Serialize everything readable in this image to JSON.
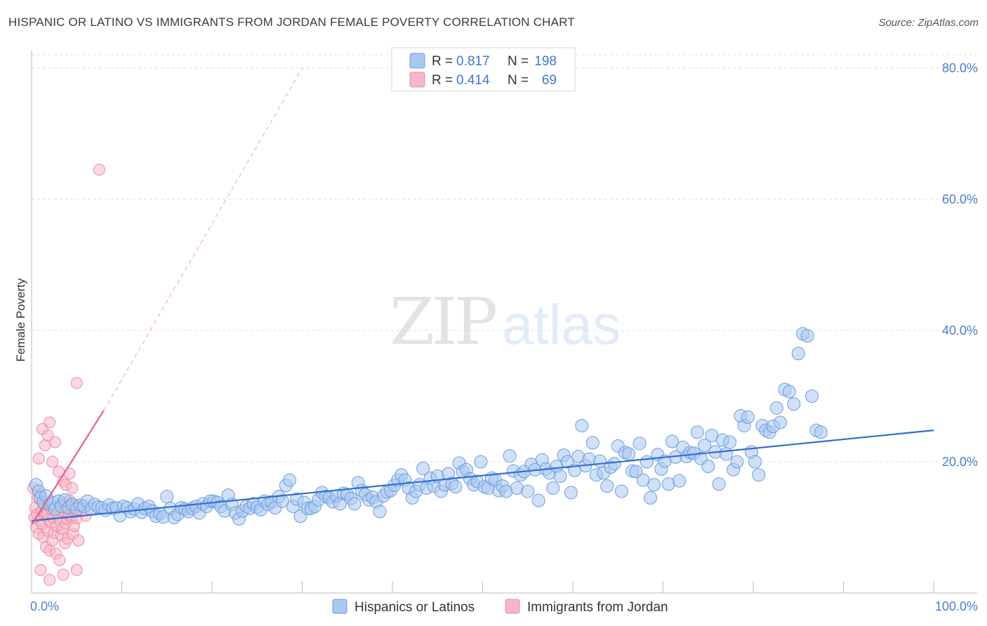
{
  "title": "HISPANIC OR LATINO VS IMMIGRANTS FROM JORDAN FEMALE POVERTY CORRELATION CHART",
  "source": "Source: ZipAtlas.com",
  "colors": {
    "blue_fill": "#a9c8f0",
    "blue_stroke": "#6a9be0",
    "blue_line": "#2f6fd1",
    "pink_fill": "#f6b7c8",
    "pink_stroke": "#ee8aa6",
    "pink_line": "#e8628a",
    "axis_text": "#4a7fd1",
    "grid": "#dddddd"
  },
  "watermark": {
    "zip": "ZIP",
    "atlas": "atlas"
  },
  "legend_top": {
    "rows": [
      {
        "r_label": "R =",
        "r_value": "0.817",
        "n_label": "N =",
        "n_value": "198"
      },
      {
        "r_label": "R =",
        "r_value": "0.414",
        "n_label": "N =",
        "n_value": "69"
      }
    ]
  },
  "legend_bottom": {
    "series1": "Hispanics or Latinos",
    "series2": "Immigrants from Jordan"
  },
  "chart_data": {
    "type": "scatter",
    "title": "HISPANIC OR LATINO VS IMMIGRANTS FROM JORDAN FEMALE POVERTY CORRELATION CHART",
    "xlabel": "",
    "ylabel": "Female Poverty",
    "xlim": [
      0,
      100
    ],
    "ylim": [
      0,
      82
    ],
    "x_tick_labels": [
      "0.0%",
      "100.0%"
    ],
    "y_ticks": [
      20,
      40,
      60,
      80
    ],
    "y_tick_labels": [
      "20.0%",
      "40.0%",
      "60.0%",
      "80.0%"
    ],
    "grid": true,
    "legend_position": "top-center",
    "series": [
      {
        "name": "Hispanics or Latinos",
        "r": 0.817,
        "n": 198,
        "trend": {
          "x0": 0,
          "y0": 11.0,
          "x1": 100,
          "y1": 24.8
        },
        "points": [
          [
            0.5,
            16.5
          ],
          [
            0.8,
            15.5
          ],
          [
            1.0,
            14.5
          ],
          [
            1.3,
            13.8
          ],
          [
            1.6,
            14.8
          ],
          [
            2.0,
            13.5
          ],
          [
            2.3,
            13.8
          ],
          [
            2.6,
            12.8
          ],
          [
            3.0,
            14.0
          ],
          [
            3.3,
            13.2
          ],
          [
            3.7,
            14.2
          ],
          [
            4.1,
            13.0
          ],
          [
            4.5,
            13.5
          ],
          [
            5.0,
            12.8
          ],
          [
            5.4,
            13.4
          ],
          [
            5.8,
            13.2
          ],
          [
            6.2,
            14.0
          ],
          [
            6.6,
            12.8
          ],
          [
            7.0,
            13.5
          ],
          [
            7.4,
            13.1
          ],
          [
            7.8,
            13.0
          ],
          [
            8.2,
            12.6
          ],
          [
            8.6,
            13.4
          ],
          [
            9.0,
            12.9
          ],
          [
            9.4,
            13.0
          ],
          [
            9.8,
            11.8
          ],
          [
            10.2,
            13.2
          ],
          [
            10.6,
            13.0
          ],
          [
            11.0,
            12.4
          ],
          [
            11.4,
            12.8
          ],
          [
            11.8,
            13.6
          ],
          [
            12.2,
            12.3
          ],
          [
            12.6,
            12.9
          ],
          [
            13.0,
            13.2
          ],
          [
            13.4,
            12.5
          ],
          [
            13.8,
            11.7
          ],
          [
            14.2,
            12.1
          ],
          [
            14.6,
            11.6
          ],
          [
            15.0,
            14.7
          ],
          [
            15.4,
            12.9
          ],
          [
            15.8,
            11.5
          ],
          [
            16.2,
            12.0
          ],
          [
            16.6,
            13.0
          ],
          [
            17.0,
            12.8
          ],
          [
            17.4,
            12.4
          ],
          [
            17.8,
            12.9
          ],
          [
            18.2,
            13.2
          ],
          [
            18.6,
            12.2
          ],
          [
            19.0,
            13.6
          ],
          [
            19.4,
            13.2
          ],
          [
            19.8,
            14.0
          ],
          [
            20.2,
            14.0
          ],
          [
            20.6,
            13.8
          ],
          [
            21.0,
            13.2
          ],
          [
            21.4,
            12.5
          ],
          [
            21.8,
            14.9
          ],
          [
            22.2,
            13.5
          ],
          [
            22.6,
            12.2
          ],
          [
            23.0,
            11.3
          ],
          [
            23.4,
            12.5
          ],
          [
            23.8,
            13.2
          ],
          [
            24.2,
            12.9
          ],
          [
            24.6,
            13.6
          ],
          [
            25.0,
            13.1
          ],
          [
            25.4,
            12.7
          ],
          [
            25.8,
            14.0
          ],
          [
            26.2,
            13.5
          ],
          [
            26.6,
            13.9
          ],
          [
            27.0,
            13.0
          ],
          [
            27.4,
            14.7
          ],
          [
            27.8,
            14.0
          ],
          [
            28.2,
            16.4
          ],
          [
            28.6,
            17.2
          ],
          [
            29.0,
            13.2
          ],
          [
            29.4,
            14.3
          ],
          [
            29.8,
            11.7
          ],
          [
            30.2,
            13.8
          ],
          [
            30.6,
            12.9
          ],
          [
            31.0,
            12.9
          ],
          [
            31.4,
            13.2
          ],
          [
            31.8,
            14.2
          ],
          [
            32.2,
            15.3
          ],
          [
            32.6,
            14.7
          ],
          [
            33.0,
            14.5
          ],
          [
            33.4,
            13.9
          ],
          [
            33.8,
            14.8
          ],
          [
            34.2,
            13.6
          ],
          [
            34.6,
            15.2
          ],
          [
            35.0,
            15.0
          ],
          [
            35.4,
            14.4
          ],
          [
            35.8,
            13.6
          ],
          [
            36.2,
            16.8
          ],
          [
            36.6,
            15.6
          ],
          [
            37.0,
            15.0
          ],
          [
            37.4,
            14.2
          ],
          [
            37.8,
            14.6
          ],
          [
            38.2,
            13.9
          ],
          [
            38.6,
            12.4
          ],
          [
            39.0,
            14.8
          ],
          [
            39.4,
            15.4
          ],
          [
            39.8,
            15.6
          ],
          [
            40.2,
            16.4
          ],
          [
            40.6,
            17.2
          ],
          [
            41.0,
            18.0
          ],
          [
            41.4,
            17.2
          ],
          [
            41.8,
            16.0
          ],
          [
            42.2,
            14.5
          ],
          [
            42.6,
            15.5
          ],
          [
            43.0,
            16.5
          ],
          [
            43.4,
            19.0
          ],
          [
            43.8,
            16.0
          ],
          [
            44.2,
            17.5
          ],
          [
            44.6,
            16.3
          ],
          [
            45.0,
            17.8
          ],
          [
            45.4,
            15.5
          ],
          [
            45.8,
            16.5
          ],
          [
            46.2,
            18.2
          ],
          [
            46.6,
            16.7
          ],
          [
            47.0,
            16.2
          ],
          [
            47.4,
            19.8
          ],
          [
            47.8,
            18.5
          ],
          [
            48.2,
            18.8
          ],
          [
            48.6,
            17.4
          ],
          [
            49.0,
            16.5
          ],
          [
            49.4,
            17.0
          ],
          [
            49.8,
            20.0
          ],
          [
            50.2,
            16.2
          ],
          [
            50.6,
            16.0
          ],
          [
            51.0,
            17.5
          ],
          [
            51.4,
            17.2
          ],
          [
            51.8,
            15.6
          ],
          [
            52.2,
            16.3
          ],
          [
            52.6,
            15.5
          ],
          [
            53.0,
            20.9
          ],
          [
            53.4,
            18.6
          ],
          [
            53.8,
            16.0
          ],
          [
            54.2,
            18.0
          ],
          [
            54.6,
            18.5
          ],
          [
            55.0,
            15.5
          ],
          [
            55.4,
            19.6
          ],
          [
            55.8,
            18.8
          ],
          [
            56.2,
            14.1
          ],
          [
            56.6,
            20.3
          ],
          [
            57.0,
            18.9
          ],
          [
            57.4,
            18.3
          ],
          [
            57.8,
            16.0
          ],
          [
            58.2,
            19.3
          ],
          [
            58.6,
            17.8
          ],
          [
            59.0,
            21.0
          ],
          [
            59.4,
            20.0
          ],
          [
            59.8,
            15.3
          ],
          [
            60.2,
            18.7
          ],
          [
            60.6,
            20.8
          ],
          [
            61.0,
            25.5
          ],
          [
            61.4,
            19.4
          ],
          [
            61.8,
            20.4
          ],
          [
            62.2,
            22.9
          ],
          [
            62.6,
            18.0
          ],
          [
            63.0,
            20.1
          ],
          [
            63.4,
            18.3
          ],
          [
            63.8,
            16.3
          ],
          [
            64.2,
            19.2
          ],
          [
            64.6,
            19.7
          ],
          [
            65.0,
            22.4
          ],
          [
            65.4,
            15.5
          ],
          [
            65.8,
            21.4
          ],
          [
            66.2,
            21.2
          ],
          [
            66.6,
            18.6
          ],
          [
            67.0,
            18.5
          ],
          [
            67.4,
            22.8
          ],
          [
            67.8,
            17.2
          ],
          [
            68.2,
            20.0
          ],
          [
            68.6,
            14.5
          ],
          [
            69.0,
            16.5
          ],
          [
            69.4,
            21.1
          ],
          [
            69.8,
            18.9
          ],
          [
            70.2,
            20.1
          ],
          [
            70.6,
            16.6
          ],
          [
            71.0,
            23.1
          ],
          [
            71.4,
            20.7
          ],
          [
            71.8,
            17.1
          ],
          [
            72.2,
            22.2
          ],
          [
            72.6,
            20.8
          ],
          [
            73.0,
            21.4
          ],
          [
            73.4,
            21.3
          ],
          [
            73.8,
            24.5
          ],
          [
            74.2,
            20.5
          ],
          [
            74.6,
            22.5
          ],
          [
            75.0,
            19.3
          ],
          [
            75.4,
            24.0
          ],
          [
            75.8,
            21.5
          ],
          [
            76.2,
            16.6
          ],
          [
            76.6,
            23.3
          ],
          [
            77.0,
            21.2
          ],
          [
            77.4,
            23.0
          ],
          [
            77.8,
            18.8
          ],
          [
            78.2,
            20.0
          ],
          [
            78.6,
            27.0
          ],
          [
            79.0,
            25.5
          ],
          [
            79.4,
            26.8
          ],
          [
            79.8,
            21.5
          ],
          [
            80.2,
            20.0
          ],
          [
            80.6,
            18.0
          ],
          [
            81.0,
            25.5
          ],
          [
            81.4,
            24.8
          ],
          [
            81.8,
            24.5
          ],
          [
            82.2,
            25.4
          ],
          [
            82.6,
            28.2
          ],
          [
            83.0,
            26.0
          ],
          [
            83.5,
            31.0
          ],
          [
            84.0,
            30.7
          ],
          [
            84.5,
            28.8
          ],
          [
            85.0,
            36.5
          ],
          [
            85.5,
            39.5
          ],
          [
            86.0,
            39.2
          ],
          [
            86.5,
            30.0
          ],
          [
            87.0,
            24.8
          ],
          [
            87.5,
            24.5
          ]
        ]
      },
      {
        "name": "Immigrants from Jordan",
        "r": 0.414,
        "n": 69,
        "trend": {
          "x0": 0,
          "y0": 10.4,
          "x1": 8.0,
          "y1": 27.8,
          "dash_x1": 30.0,
          "dash_y1": 80.0
        },
        "points": [
          [
            0.2,
            16.0
          ],
          [
            0.3,
            11.5
          ],
          [
            0.4,
            13.0
          ],
          [
            0.5,
            10.0
          ],
          [
            0.6,
            12.0
          ],
          [
            0.7,
            14.5
          ],
          [
            0.8,
            9.0
          ],
          [
            0.9,
            11.0
          ],
          [
            1.0,
            15.0
          ],
          [
            1.1,
            12.5
          ],
          [
            1.2,
            10.5
          ],
          [
            1.3,
            8.5
          ],
          [
            1.4,
            13.5
          ],
          [
            1.5,
            11.8
          ],
          [
            1.6,
            7.0
          ],
          [
            1.7,
            12.0
          ],
          [
            1.8,
            9.5
          ],
          [
            1.9,
            11.2
          ],
          [
            2.0,
            6.5
          ],
          [
            2.1,
            10.8
          ],
          [
            2.2,
            12.8
          ],
          [
            2.3,
            8.0
          ],
          [
            2.4,
            11.5
          ],
          [
            2.5,
            9.2
          ],
          [
            2.6,
            13.2
          ],
          [
            2.7,
            6.0
          ],
          [
            2.8,
            10.2
          ],
          [
            2.9,
            12.2
          ],
          [
            3.0,
            18.5
          ],
          [
            3.1,
            5.0
          ],
          [
            3.2,
            11.0
          ],
          [
            3.3,
            8.8
          ],
          [
            3.4,
            9.8
          ],
          [
            3.5,
            13.8
          ],
          [
            3.6,
            12.4
          ],
          [
            3.7,
            7.6
          ],
          [
            3.8,
            10.6
          ],
          [
            3.9,
            11.4
          ],
          [
            4.0,
            8.3
          ],
          [
            4.1,
            12.0
          ],
          [
            4.2,
            14.1
          ],
          [
            4.3,
            11.7
          ],
          [
            4.4,
            13.6
          ],
          [
            4.5,
            11.5
          ],
          [
            4.6,
            9.0
          ],
          [
            4.7,
            10.2
          ],
          [
            4.8,
            12.3
          ],
          [
            4.9,
            13.4
          ],
          [
            5.0,
            11.4
          ],
          [
            5.2,
            8.0
          ],
          [
            0.8,
            20.5
          ],
          [
            1.2,
            25.0
          ],
          [
            1.5,
            22.5
          ],
          [
            1.8,
            24.0
          ],
          [
            2.0,
            26.0
          ],
          [
            2.3,
            20.0
          ],
          [
            2.6,
            23.0
          ],
          [
            3.5,
            17.0
          ],
          [
            3.8,
            16.5
          ],
          [
            4.2,
            18.2
          ],
          [
            4.5,
            16.0
          ],
          [
            5.0,
            32.0
          ],
          [
            5.5,
            12.5
          ],
          [
            6.0,
            11.8
          ],
          [
            7.5,
            64.5
          ],
          [
            1.0,
            3.5
          ],
          [
            2.0,
            2.0
          ],
          [
            3.5,
            2.8
          ],
          [
            5.0,
            3.5
          ]
        ]
      }
    ]
  }
}
